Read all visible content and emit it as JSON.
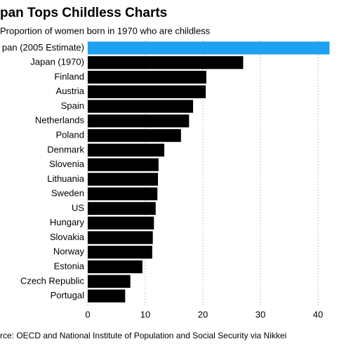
{
  "chart_data": {
    "type": "hbar",
    "title": "pan Tops Childless Charts",
    "subtitle": "Proportion of women born in 1970 who are childless",
    "source": "rce: OECD and National Institute of Population and Social Security via Nikkei",
    "categories": [
      "pan (2005 Estimate)",
      "Japan (1970)",
      "Finland",
      "Austria",
      "Spain",
      "Netherlands",
      "Poland",
      "Denmark",
      "Slovenia",
      "Lithuania",
      "Sweden",
      "US",
      "Hungary",
      "Slovakia",
      "Norway",
      "Estonia",
      "Czech Republic",
      "Portugal"
    ],
    "values": [
      42,
      27,
      20.6,
      20.5,
      18.3,
      17.6,
      16.2,
      13.3,
      12.3,
      12.2,
      12.1,
      11.8,
      11.5,
      11.3,
      11.2,
      9.5,
      7.4,
      6.5
    ],
    "colors": [
      "#1da1f2",
      "#000000",
      "#000000",
      "#000000",
      "#000000",
      "#000000",
      "#000000",
      "#000000",
      "#000000",
      "#000000",
      "#000000",
      "#000000",
      "#000000",
      "#000000",
      "#000000",
      "#000000",
      "#000000",
      "#000000"
    ],
    "xlim": [
      0,
      42.5
    ],
    "xticks": [
      0,
      10,
      20,
      30,
      40
    ],
    "grid": true
  }
}
